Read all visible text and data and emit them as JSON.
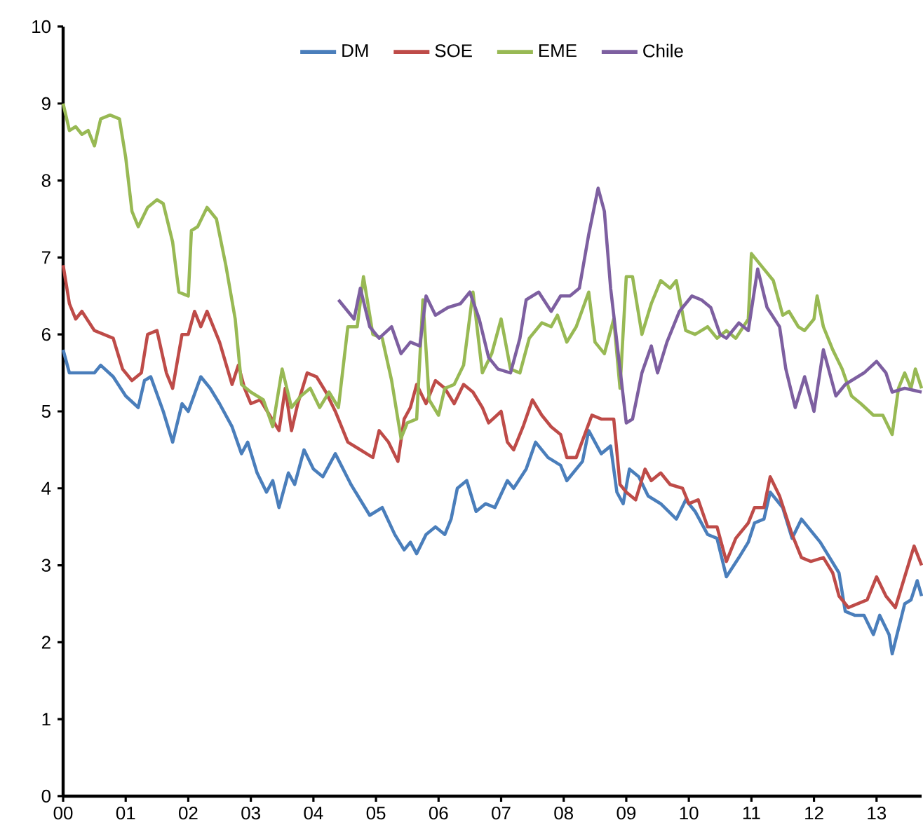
{
  "chart_data": {
    "type": "line",
    "legend": "top",
    "grid": false,
    "marker": "none",
    "line_style": "solid",
    "xlim": [
      2000,
      2013.72
    ],
    "ylim": [
      0,
      10
    ],
    "yticks": [
      0,
      1,
      2,
      3,
      4,
      5,
      6,
      7,
      8,
      9,
      10
    ],
    "xticks": [
      {
        "value": 2000,
        "label": "00"
      },
      {
        "value": 2001,
        "label": "01"
      },
      {
        "value": 2002,
        "label": "02"
      },
      {
        "value": 2003,
        "label": "03"
      },
      {
        "value": 2004,
        "label": "04"
      },
      {
        "value": 2005,
        "label": "05"
      },
      {
        "value": 2006,
        "label": "06"
      },
      {
        "value": 2007,
        "label": "07"
      },
      {
        "value": 2008,
        "label": "08"
      },
      {
        "value": 2009,
        "label": "09"
      },
      {
        "value": 2010,
        "label": "10"
      },
      {
        "value": 2011,
        "label": "11"
      },
      {
        "value": 2012,
        "label": "12"
      },
      {
        "value": 2013,
        "label": "13"
      }
    ],
    "series": [
      {
        "name": "DM",
        "color": "#4a7ebb",
        "x": [
          2000.0,
          2000.1,
          2000.3,
          2000.5,
          2000.6,
          2000.8,
          2001.0,
          2001.2,
          2001.3,
          2001.4,
          2001.6,
          2001.75,
          2001.9,
          2002.0,
          2002.2,
          2002.35,
          2002.5,
          2002.7,
          2002.85,
          2002.95,
          2003.1,
          2003.25,
          2003.35,
          2003.45,
          2003.6,
          2003.7,
          2003.85,
          2004.0,
          2004.15,
          2004.35,
          2004.6,
          2004.9,
          2005.1,
          2005.3,
          2005.45,
          2005.55,
          2005.65,
          2005.8,
          2005.95,
          2006.1,
          2006.2,
          2006.3,
          2006.45,
          2006.6,
          2006.75,
          2006.9,
          2007.1,
          2007.2,
          2007.4,
          2007.55,
          2007.75,
          2007.95,
          2008.05,
          2008.3,
          2008.4,
          2008.6,
          2008.75,
          2008.85,
          2008.95,
          2009.05,
          2009.2,
          2009.35,
          2009.55,
          2009.8,
          2009.95,
          2010.1,
          2010.3,
          2010.45,
          2010.6,
          2010.8,
          2010.95,
          2011.05,
          2011.2,
          2011.3,
          2011.5,
          2011.65,
          2011.8,
          2011.9,
          2012.1,
          2012.25,
          2012.4,
          2012.5,
          2012.65,
          2012.8,
          2012.95,
          2013.05,
          2013.2,
          2013.25,
          2013.45,
          2013.55,
          2013.65,
          2013.72
        ],
        "values": [
          5.8,
          5.5,
          5.5,
          5.5,
          5.6,
          5.45,
          5.2,
          5.05,
          5.4,
          5.45,
          5.0,
          4.6,
          5.1,
          5.0,
          5.45,
          5.3,
          5.1,
          4.8,
          4.45,
          4.6,
          4.2,
          3.95,
          4.1,
          3.75,
          4.2,
          4.05,
          4.5,
          4.25,
          4.15,
          4.45,
          4.05,
          3.65,
          3.75,
          3.4,
          3.2,
          3.3,
          3.15,
          3.4,
          3.5,
          3.4,
          3.6,
          4.0,
          4.1,
          3.7,
          3.8,
          3.75,
          4.1,
          4.0,
          4.25,
          4.6,
          4.4,
          4.3,
          4.1,
          4.35,
          4.75,
          4.45,
          4.55,
          3.95,
          3.8,
          4.25,
          4.15,
          3.9,
          3.8,
          3.6,
          3.85,
          3.7,
          3.4,
          3.35,
          2.85,
          3.1,
          3.3,
          3.55,
          3.6,
          3.95,
          3.75,
          3.35,
          3.6,
          3.5,
          3.3,
          3.1,
          2.9,
          2.4,
          2.35,
          2.35,
          2.1,
          2.35,
          2.1,
          1.85,
          2.5,
          2.55,
          2.8,
          2.6
        ]
      },
      {
        "name": "SOE",
        "color": "#be4b48",
        "x": [
          2000.0,
          2000.1,
          2000.2,
          2000.3,
          2000.5,
          2000.65,
          2000.8,
          2000.95,
          2001.1,
          2001.25,
          2001.35,
          2001.5,
          2001.65,
          2001.75,
          2001.9,
          2002.0,
          2002.1,
          2002.2,
          2002.3,
          2002.5,
          2002.7,
          2002.8,
          2002.9,
          2003.0,
          2003.15,
          2003.3,
          2003.45,
          2003.55,
          2003.65,
          2003.75,
          2003.9,
          2004.05,
          2004.2,
          2004.35,
          2004.55,
          2004.75,
          2004.95,
          2005.05,
          2005.2,
          2005.35,
          2005.45,
          2005.55,
          2005.65,
          2005.8,
          2005.95,
          2006.1,
          2006.25,
          2006.4,
          2006.55,
          2006.7,
          2006.8,
          2007.0,
          2007.1,
          2007.2,
          2007.35,
          2007.5,
          2007.65,
          2007.8,
          2007.95,
          2008.05,
          2008.2,
          2008.45,
          2008.6,
          2008.8,
          2008.9,
          2009.0,
          2009.15,
          2009.3,
          2009.4,
          2009.55,
          2009.7,
          2009.9,
          2010.0,
          2010.15,
          2010.3,
          2010.45,
          2010.6,
          2010.75,
          2010.95,
          2011.05,
          2011.2,
          2011.3,
          2011.45,
          2011.65,
          2011.8,
          2011.95,
          2012.15,
          2012.3,
          2012.4,
          2012.55,
          2012.7,
          2012.85,
          2013.0,
          2013.15,
          2013.3,
          2013.45,
          2013.6,
          2013.72
        ],
        "values": [
          6.9,
          6.4,
          6.2,
          6.3,
          6.05,
          6.0,
          5.95,
          5.55,
          5.4,
          5.5,
          6.0,
          6.05,
          5.5,
          5.3,
          6.0,
          6.0,
          6.3,
          6.1,
          6.3,
          5.9,
          5.35,
          5.6,
          5.3,
          5.1,
          5.15,
          4.95,
          4.75,
          5.3,
          4.75,
          5.1,
          5.5,
          5.45,
          5.25,
          5.0,
          4.6,
          4.5,
          4.4,
          4.75,
          4.6,
          4.35,
          4.9,
          5.05,
          5.35,
          5.1,
          5.4,
          5.3,
          5.1,
          5.35,
          5.25,
          5.05,
          4.85,
          5.0,
          4.6,
          4.5,
          4.8,
          5.15,
          4.95,
          4.8,
          4.7,
          4.4,
          4.4,
          4.95,
          4.9,
          4.9,
          4.05,
          3.95,
          3.85,
          4.25,
          4.1,
          4.2,
          4.05,
          4.0,
          3.8,
          3.85,
          3.5,
          3.5,
          3.05,
          3.35,
          3.55,
          3.75,
          3.75,
          4.15,
          3.9,
          3.4,
          3.1,
          3.05,
          3.1,
          2.9,
          2.6,
          2.45,
          2.5,
          2.55,
          2.85,
          2.6,
          2.45,
          2.85,
          3.25,
          3.0
        ]
      },
      {
        "name": "EME",
        "color": "#98b954",
        "x": [
          2000.0,
          2000.1,
          2000.2,
          2000.3,
          2000.4,
          2000.5,
          2000.6,
          2000.75,
          2000.9,
          2001.0,
          2001.1,
          2001.2,
          2001.35,
          2001.5,
          2001.6,
          2001.75,
          2001.85,
          2002.0,
          2002.05,
          2002.15,
          2002.3,
          2002.45,
          2002.6,
          2002.75,
          2002.85,
          2003.0,
          2003.2,
          2003.35,
          2003.5,
          2003.65,
          2003.8,
          2003.95,
          2004.1,
          2004.25,
          2004.4,
          2004.55,
          2004.7,
          2004.8,
          2004.95,
          2005.1,
          2005.25,
          2005.4,
          2005.5,
          2005.65,
          2005.75,
          2005.85,
          2006.0,
          2006.1,
          2006.25,
          2006.4,
          2006.55,
          2006.7,
          2006.85,
          2007.0,
          2007.15,
          2007.3,
          2007.45,
          2007.65,
          2007.8,
          2007.9,
          2008.05,
          2008.2,
          2008.4,
          2008.5,
          2008.65,
          2008.8,
          2008.9,
          2009.0,
          2009.1,
          2009.25,
          2009.4,
          2009.55,
          2009.7,
          2009.8,
          2009.95,
          2010.1,
          2010.3,
          2010.45,
          2010.6,
          2010.75,
          2010.95,
          2011.0,
          2011.1,
          2011.2,
          2011.35,
          2011.5,
          2011.6,
          2011.75,
          2011.85,
          2012.0,
          2012.05,
          2012.15,
          2012.3,
          2012.45,
          2012.6,
          2012.75,
          2012.95,
          2013.1,
          2013.25,
          2013.35,
          2013.45,
          2013.55,
          2013.62,
          2013.72
        ],
        "values": [
          9.0,
          8.65,
          8.7,
          8.6,
          8.65,
          8.45,
          8.8,
          8.85,
          8.8,
          8.3,
          7.6,
          7.4,
          7.65,
          7.75,
          7.7,
          7.2,
          6.55,
          6.5,
          7.35,
          7.4,
          7.65,
          7.5,
          6.9,
          6.2,
          5.35,
          5.25,
          5.15,
          4.8,
          5.55,
          5.05,
          5.2,
          5.3,
          5.05,
          5.25,
          5.05,
          6.1,
          6.1,
          6.75,
          6.0,
          5.95,
          5.4,
          4.65,
          4.85,
          4.9,
          6.45,
          5.15,
          4.95,
          5.3,
          5.35,
          5.6,
          6.55,
          5.5,
          5.75,
          6.2,
          5.55,
          5.5,
          5.95,
          6.15,
          6.1,
          6.25,
          5.9,
          6.1,
          6.55,
          5.9,
          5.75,
          6.2,
          5.3,
          6.75,
          6.75,
          6.0,
          6.4,
          6.7,
          6.6,
          6.7,
          6.05,
          6.0,
          6.1,
          5.95,
          6.05,
          5.95,
          6.2,
          7.05,
          6.95,
          6.85,
          6.7,
          6.25,
          6.3,
          6.1,
          6.05,
          6.2,
          6.5,
          6.1,
          5.8,
          5.55,
          5.2,
          5.1,
          4.95,
          4.95,
          4.7,
          5.3,
          5.5,
          5.3,
          5.55,
          5.3
        ]
      },
      {
        "name": "Chile",
        "color": "#7d5fa0",
        "x": [
          2004.4,
          2004.55,
          2004.65,
          2004.75,
          2004.9,
          2005.05,
          2005.25,
          2005.4,
          2005.55,
          2005.7,
          2005.8,
          2005.95,
          2006.15,
          2006.35,
          2006.5,
          2006.65,
          2006.8,
          2006.95,
          2007.15,
          2007.3,
          2007.4,
          2007.6,
          2007.8,
          2007.95,
          2008.1,
          2008.25,
          2008.4,
          2008.55,
          2008.65,
          2008.75,
          2008.85,
          2009.0,
          2009.1,
          2009.25,
          2009.4,
          2009.5,
          2009.65,
          2009.85,
          2010.05,
          2010.2,
          2010.35,
          2010.5,
          2010.6,
          2010.8,
          2010.95,
          2011.1,
          2011.25,
          2011.45,
          2011.55,
          2011.7,
          2011.85,
          2012.0,
          2012.15,
          2012.35,
          2012.5,
          2012.8,
          2013.0,
          2013.15,
          2013.25,
          2013.45,
          2013.72
        ],
        "values": [
          6.45,
          6.3,
          6.2,
          6.6,
          6.1,
          5.95,
          6.1,
          5.75,
          5.9,
          5.85,
          6.5,
          6.25,
          6.35,
          6.4,
          6.55,
          6.2,
          5.7,
          5.55,
          5.5,
          5.95,
          6.45,
          6.55,
          6.3,
          6.5,
          6.5,
          6.6,
          7.3,
          7.9,
          7.6,
          6.6,
          5.9,
          4.85,
          4.9,
          5.5,
          5.85,
          5.5,
          5.9,
          6.3,
          6.5,
          6.45,
          6.35,
          6.0,
          5.95,
          6.15,
          6.05,
          6.85,
          6.35,
          6.1,
          5.55,
          5.05,
          5.45,
          5.0,
          5.8,
          5.2,
          5.35,
          5.5,
          5.65,
          5.5,
          5.25,
          5.3,
          5.25
        ]
      }
    ]
  }
}
